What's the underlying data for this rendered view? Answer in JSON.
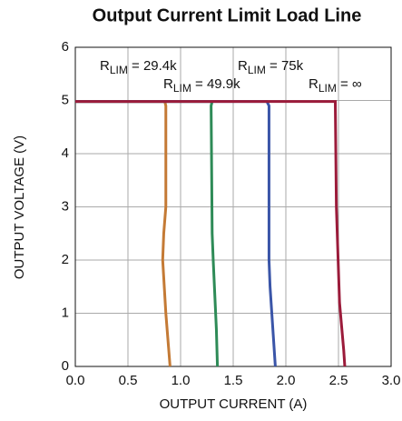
{
  "chart_data": {
    "type": "line",
    "title": "Output Current Limit Load Line",
    "x_label": "OUTPUT CURRENT (A)",
    "y_label": "OUTPUT VOLTAGE (V)",
    "xlim": [
      0,
      3
    ],
    "ylim": [
      0,
      6
    ],
    "xticks": [
      {
        "value": 0,
        "label": "0.0"
      },
      0.5,
      {
        "value": 1,
        "label": "1.0"
      },
      1.5,
      {
        "value": 2,
        "label": "2.0"
      },
      2.5,
      {
        "value": 3,
        "label": "3.0"
      }
    ],
    "yticks": [
      0,
      1,
      2,
      3,
      4,
      5,
      6
    ],
    "grid": true,
    "series": [
      {
        "name": "RLIM = 29.4k",
        "color": "#c47a35",
        "x": [
          0,
          0.85,
          0.86,
          0.86,
          0.84,
          0.83,
          0.86,
          0.9
        ],
        "values": [
          4.98,
          4.98,
          4.9,
          3.0,
          2.5,
          2.0,
          1.0,
          0
        ]
      },
      {
        "name": "RLIM = 49.9k",
        "color": "#2e8b57",
        "x": [
          0,
          1.3,
          1.29,
          1.3,
          1.31,
          1.34,
          1.35
        ],
        "values": [
          4.98,
          4.98,
          4.9,
          2.5,
          2.0,
          0.7,
          0
        ]
      },
      {
        "name": "RLIM = 75k",
        "color": "#3a55a8",
        "x": [
          0,
          1.82,
          1.84,
          1.84,
          1.85,
          1.88,
          1.9
        ],
        "values": [
          4.98,
          4.98,
          4.9,
          2.0,
          1.5,
          0.6,
          0
        ]
      },
      {
        "name": "RLIM = ∞",
        "color": "#9b1b3a",
        "x": [
          0,
          2.47,
          2.47,
          2.48,
          2.51,
          2.55,
          2.56
        ],
        "values": [
          4.98,
          4.98,
          4.9,
          3.0,
          1.2,
          0.3,
          0
        ]
      }
    ]
  }
}
